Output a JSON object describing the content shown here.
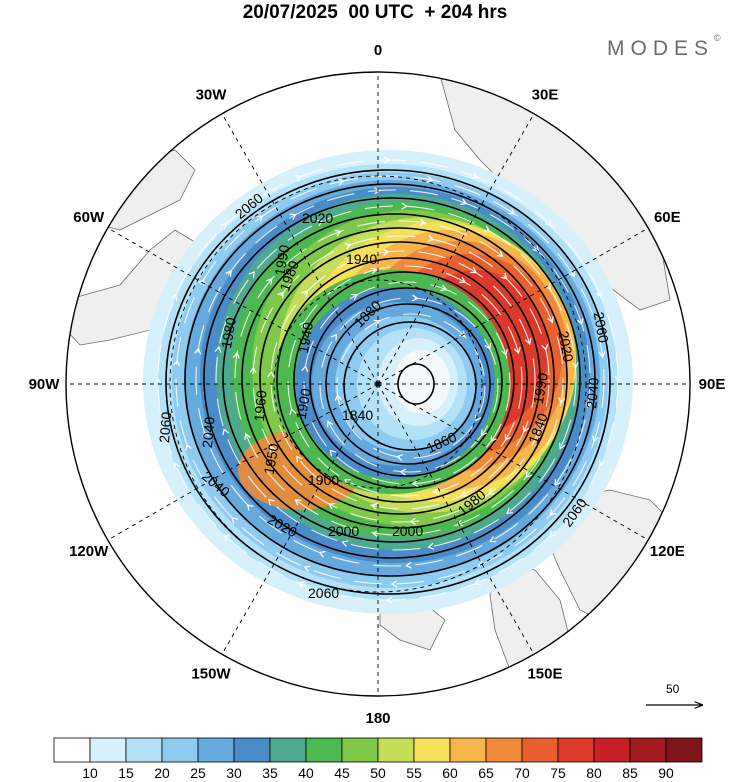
{
  "title": "20/07/2025  00 UTC  + 204 hrs",
  "brand": "MODES",
  "brand_mark": "©",
  "longitude_labels": [
    {
      "text": "0",
      "lon": 0
    },
    {
      "text": "30E",
      "lon": 30
    },
    {
      "text": "60E",
      "lon": 60
    },
    {
      "text": "90E",
      "lon": 90
    },
    {
      "text": "120E",
      "lon": 120
    },
    {
      "text": "150E",
      "lon": 150
    },
    {
      "text": "180",
      "lon": 180
    },
    {
      "text": "150W",
      "lon": -150
    },
    {
      "text": "120W",
      "lon": -120
    },
    {
      "text": "90W",
      "lon": -90
    },
    {
      "text": "60W",
      "lon": -60
    },
    {
      "text": "30W",
      "lon": -30
    }
  ],
  "contour_labels": [
    "2060",
    "2020",
    "1980",
    "1940",
    "1880",
    "1840",
    "1860",
    "1900",
    "1950",
    "1960",
    "1980",
    "2000",
    "2000",
    "2020",
    "2040",
    "2060",
    "2060",
    "2040",
    "2060",
    "2020",
    "1990",
    "2040",
    "2060",
    "1940",
    "1990",
    "1840",
    "1900",
    "1980"
  ],
  "reference_vector": {
    "label": "50",
    "icon": "arrow-right-icon"
  },
  "colorbar": {
    "ticks": [
      "10",
      "15",
      "20",
      "25",
      "30",
      "35",
      "40",
      "45",
      "50",
      "55",
      "60",
      "65",
      "70",
      "75",
      "80",
      "85",
      "90"
    ],
    "colors": [
      "#ffffff",
      "#d6f0fc",
      "#b3e2f8",
      "#8ecbf0",
      "#66a9dd",
      "#4a8cc7",
      "#4daa8f",
      "#4cb84f",
      "#7ec84a",
      "#c5dd5a",
      "#f6df59",
      "#f6b64c",
      "#f08a3a",
      "#e8602f",
      "#dc3a2a",
      "#c72026",
      "#a21b1f",
      "#7e1519"
    ]
  }
}
